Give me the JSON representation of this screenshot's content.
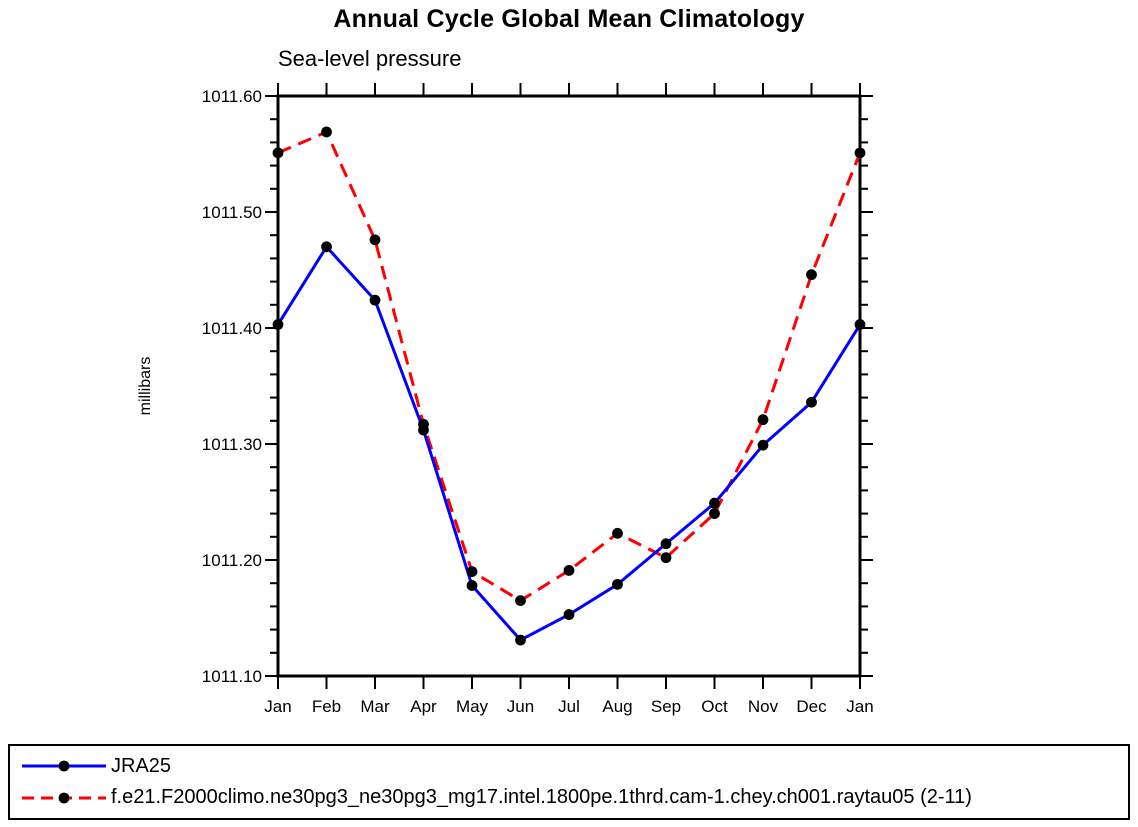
{
  "chart_data": {
    "type": "line",
    "title": "Annual Cycle Global Mean Climatology",
    "subtitle": "Sea-level pressure",
    "xlabel": "",
    "ylabel": "millibars",
    "x_categories": [
      "Jan",
      "Feb",
      "Mar",
      "Apr",
      "May",
      "Jun",
      "Jul",
      "Aug",
      "Sep",
      "Oct",
      "Nov",
      "Dec",
      "Jan"
    ],
    "ylim": [
      1011.1,
      1011.6
    ],
    "y_major_step": 0.1,
    "y_minor_step": 0.02,
    "y_tick_labels": [
      "1011.60",
      "1011.50",
      "1011.40",
      "1011.30",
      "1011.20",
      "1011.10"
    ],
    "grid": false,
    "legend_position": "bottom",
    "series": [
      {
        "name": "JRA25",
        "color": "#0000ff",
        "line_style": "solid",
        "marker": "filled-circle",
        "marker_color": "#000000",
        "values": [
          1011.403,
          1011.47,
          1011.424,
          1011.312,
          1011.178,
          1011.131,
          1011.153,
          1011.179,
          1011.214,
          1011.249,
          1011.299,
          1011.336,
          1011.403
        ]
      },
      {
        "name": "f.e21.F2000climo.ne30pg3_ne30pg3_mg17.intel.1800pe.1thrd.cam-1.chey.ch001.raytau05 (2-11)",
        "color": "#ff0000",
        "line_style": "dashed",
        "marker": "filled-circle",
        "marker_color": "#000000",
        "values": [
          1011.551,
          1011.569,
          1011.476,
          1011.317,
          1011.19,
          1011.165,
          1011.191,
          1011.223,
          1011.202,
          1011.24,
          1011.321,
          1011.446,
          1011.551
        ]
      }
    ],
    "colors": {
      "background": "#ffffff",
      "axis": "#000000",
      "text": "#000000"
    }
  }
}
